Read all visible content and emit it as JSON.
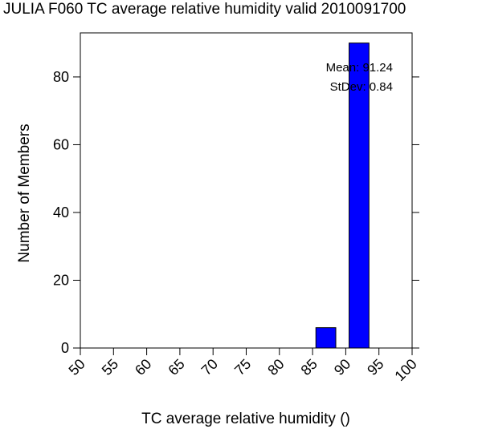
{
  "chart_data": {
    "type": "bar",
    "title": "JULIA F060 TC average relative humidity valid 2010091700",
    "xlabel": "TC average relative humidity ()",
    "ylabel": "Number of Members",
    "xlim": [
      50,
      100
    ],
    "ylim": [
      0,
      93
    ],
    "x_ticks": [
      "50",
      "55",
      "60",
      "65",
      "70",
      "75",
      "80",
      "85",
      "90",
      "95",
      "100"
    ],
    "y_ticks": [
      "0",
      "20",
      "40",
      "60",
      "80"
    ],
    "bars": [
      {
        "x_start": 85.5,
        "x_end": 88.5,
        "value": 6
      },
      {
        "x_start": 90.5,
        "x_end": 93.5,
        "value": 90
      }
    ],
    "bar_color": "#0000ff",
    "annotations": {
      "mean": "Mean: 91.24",
      "stdev": "StDev: 0.84"
    },
    "grid": false
  }
}
